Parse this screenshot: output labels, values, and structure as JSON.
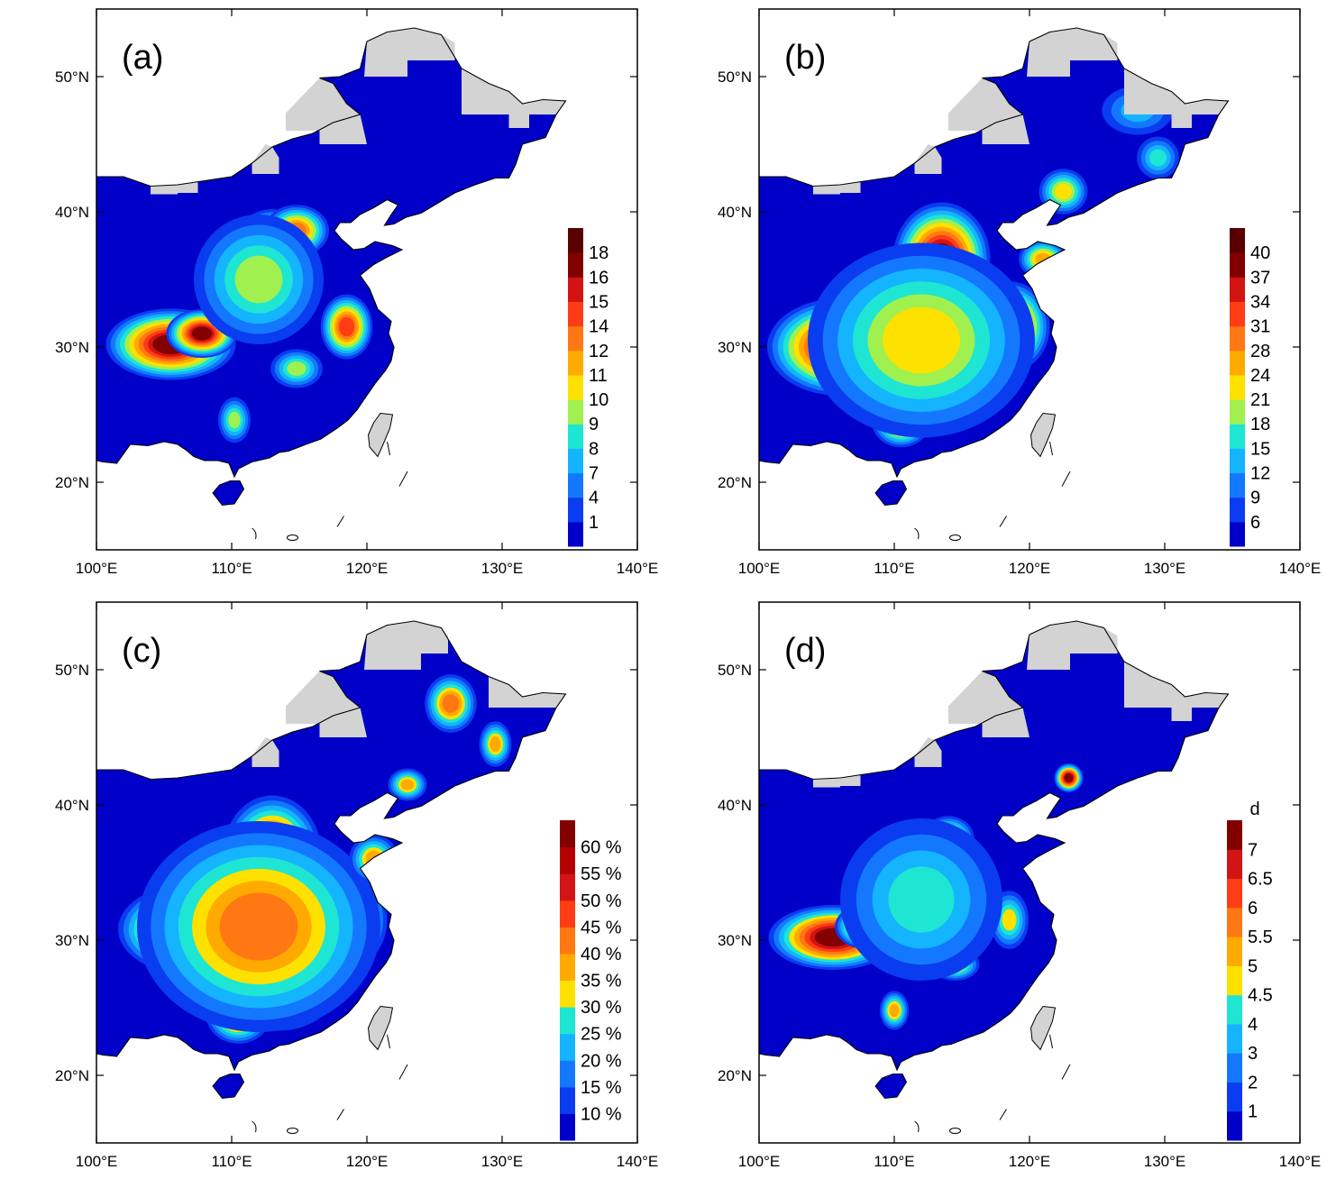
{
  "colors": {
    "background_sea": "#ffffff",
    "missing_land": "#d3d3d3",
    "coast": "#000000",
    "palette": [
      "#0000c8",
      "#0a3cf0",
      "#1478ff",
      "#14b4ff",
      "#1ee6d2",
      "#a0f050",
      "#ffe100",
      "#ffaa00",
      "#ff7814",
      "#ff3c14",
      "#d21414",
      "#820000"
    ]
  },
  "axes": {
    "lon_ticks": [
      "100°E",
      "110°E",
      "120°E",
      "130°E",
      "140°E"
    ],
    "lat_ticks": [
      "50°N",
      "40°N",
      "30°N",
      "20°N"
    ],
    "lon_range": [
      100,
      140
    ],
    "lat_range": [
      15,
      55
    ]
  },
  "panels": [
    {
      "id": "a",
      "label": "(a)",
      "colorbar": {
        "title": "",
        "labels": [
          "1",
          "4",
          "7",
          "8",
          "9",
          "10",
          "11",
          "12",
          "14",
          "15",
          "16",
          "18"
        ],
        "colors": [
          "#0000c8",
          "#0a3cf0",
          "#1478ff",
          "#14b4ff",
          "#1ee6d2",
          "#a0f050",
          "#ffe100",
          "#ffaa00",
          "#ff7814",
          "#ff3c14",
          "#d21414",
          "#820000",
          "#5a0000"
        ]
      },
      "hotspots": [
        {
          "lon": 105.5,
          "lat": 30.2,
          "level": 0.95,
          "rx": 4.0,
          "ry": 2.2
        },
        {
          "lon": 107.8,
          "lat": 31.0,
          "level": 0.9,
          "rx": 2.2,
          "ry": 1.5
        },
        {
          "lon": 113.0,
          "lat": 37.2,
          "level": 0.9,
          "rx": 2.5,
          "ry": 2.5
        },
        {
          "lon": 114.8,
          "lat": 38.6,
          "level": 0.7,
          "rx": 2.0,
          "ry": 1.6
        },
        {
          "lon": 113.0,
          "lat": 34.0,
          "level": 0.65,
          "rx": 1.6,
          "ry": 2.2
        },
        {
          "lon": 118.5,
          "lat": 31.5,
          "level": 0.75,
          "rx": 1.6,
          "ry": 2.0
        },
        {
          "lon": 114.8,
          "lat": 28.4,
          "level": 0.45,
          "rx": 1.6,
          "ry": 1.2
        },
        {
          "lon": 110.2,
          "lat": 24.6,
          "level": 0.4,
          "rx": 1.0,
          "ry": 1.4
        },
        {
          "lon": 112.0,
          "lat": 35.0,
          "level": 0.45,
          "rx": 4.0,
          "ry": 4.0
        }
      ]
    },
    {
      "id": "b",
      "label": "(b)",
      "colorbar": {
        "title": "",
        "labels": [
          "6",
          "9",
          "12",
          "15",
          "18",
          "21",
          "24",
          "28",
          "31",
          "34",
          "37",
          "40"
        ],
        "colors": [
          "#0000c8",
          "#0a3cf0",
          "#1478ff",
          "#14b4ff",
          "#1ee6d2",
          "#a0f050",
          "#ffe100",
          "#ffaa00",
          "#ff7814",
          "#ff3c14",
          "#d21414",
          "#820000",
          "#5a0000"
        ]
      },
      "hotspots": [
        {
          "lon": 106.0,
          "lat": 30.0,
          "level": 0.95,
          "rx": 4.5,
          "ry": 3.0
        },
        {
          "lon": 113.5,
          "lat": 36.5,
          "level": 0.9,
          "rx": 3.0,
          "ry": 3.5
        },
        {
          "lon": 118.5,
          "lat": 31.5,
          "level": 0.82,
          "rx": 2.5,
          "ry": 2.8
        },
        {
          "lon": 114.5,
          "lat": 28.0,
          "level": 0.65,
          "rx": 2.6,
          "ry": 2.0
        },
        {
          "lon": 110.5,
          "lat": 24.5,
          "level": 0.65,
          "rx": 1.8,
          "ry": 1.6
        },
        {
          "lon": 121.0,
          "lat": 36.5,
          "level": 0.6,
          "rx": 1.5,
          "ry": 1.2
        },
        {
          "lon": 122.5,
          "lat": 41.5,
          "level": 0.5,
          "rx": 1.5,
          "ry": 1.4
        },
        {
          "lon": 112.0,
          "lat": 30.5,
          "level": 0.5,
          "rx": 7.0,
          "ry": 6.0
        },
        {
          "lon": 129.5,
          "lat": 44.0,
          "level": 0.35,
          "rx": 1.3,
          "ry": 1.3
        },
        {
          "lon": 128.0,
          "lat": 47.5,
          "level": 0.28,
          "rx": 2.2,
          "ry": 1.5
        }
      ]
    },
    {
      "id": "c",
      "label": "(c)",
      "colorbar": {
        "title": "",
        "labels": [
          "10 %",
          "15 %",
          "20 %",
          "25 %",
          "30 %",
          "35 %",
          "40 %",
          "45 %",
          "50 %",
          "55 %",
          "60 %"
        ],
        "colors": [
          "#0000c8",
          "#0a3cf0",
          "#1478ff",
          "#14b4ff",
          "#1ee6d2",
          "#ffe100",
          "#ffaa00",
          "#ff7814",
          "#ff3c14",
          "#d21414",
          "#b40000",
          "#820000"
        ]
      },
      "hotspots": [
        {
          "lon": 107.0,
          "lat": 30.8,
          "level": 0.97,
          "rx": 4.5,
          "ry": 2.8
        },
        {
          "lon": 113.0,
          "lat": 36.5,
          "level": 0.85,
          "rx": 3.0,
          "ry": 3.5
        },
        {
          "lon": 113.5,
          "lat": 27.5,
          "level": 0.72,
          "rx": 4.0,
          "ry": 3.5
        },
        {
          "lon": 110.5,
          "lat": 24.5,
          "level": 0.75,
          "rx": 2.0,
          "ry": 1.8
        },
        {
          "lon": 118.5,
          "lat": 31.5,
          "level": 0.72,
          "rx": 2.5,
          "ry": 3.0
        },
        {
          "lon": 112.0,
          "lat": 31.0,
          "level": 0.6,
          "rx": 7.5,
          "ry": 6.5
        },
        {
          "lon": 120.5,
          "lat": 36.0,
          "level": 0.55,
          "rx": 1.5,
          "ry": 1.5
        },
        {
          "lon": 126.2,
          "lat": 47.5,
          "level": 0.6,
          "rx": 1.6,
          "ry": 1.8
        },
        {
          "lon": 129.5,
          "lat": 44.5,
          "level": 0.55,
          "rx": 1.0,
          "ry": 1.4
        },
        {
          "lon": 123.0,
          "lat": 41.5,
          "level": 0.5,
          "rx": 1.2,
          "ry": 1.0
        }
      ]
    },
    {
      "id": "d",
      "label": "(d)",
      "colorbar": {
        "title": "d",
        "labels": [
          "1",
          "2",
          "3",
          "4",
          "4.5",
          "5",
          "5.5",
          "6",
          "6.5",
          "7"
        ],
        "colors": [
          "#0000c8",
          "#0a3cf0",
          "#1478ff",
          "#14b4ff",
          "#1ee6d2",
          "#ffe100",
          "#ffaa00",
          "#ff7814",
          "#ff3c14",
          "#d21414",
          "#820000"
        ]
      },
      "hotspots": [
        {
          "lon": 105.5,
          "lat": 30.2,
          "level": 0.95,
          "rx": 4.0,
          "ry": 2.0
        },
        {
          "lon": 108.0,
          "lat": 31.0,
          "level": 0.85,
          "rx": 2.0,
          "ry": 1.4
        },
        {
          "lon": 112.0,
          "lat": 36.0,
          "level": 0.9,
          "rx": 1.6,
          "ry": 2.2
        },
        {
          "lon": 114.0,
          "lat": 37.5,
          "level": 0.7,
          "rx": 1.6,
          "ry": 1.4
        },
        {
          "lon": 122.9,
          "lat": 42.0,
          "level": 0.95,
          "rx": 0.9,
          "ry": 0.9
        },
        {
          "lon": 114.5,
          "lat": 28.2,
          "level": 0.55,
          "rx": 1.5,
          "ry": 1.0
        },
        {
          "lon": 110.0,
          "lat": 24.8,
          "level": 0.55,
          "rx": 0.9,
          "ry": 1.2
        },
        {
          "lon": 118.5,
          "lat": 31.5,
          "level": 0.48,
          "rx": 1.2,
          "ry": 1.8
        },
        {
          "lon": 112.0,
          "lat": 33.0,
          "level": 0.38,
          "rx": 5.0,
          "ry": 5.0
        }
      ]
    }
  ]
}
